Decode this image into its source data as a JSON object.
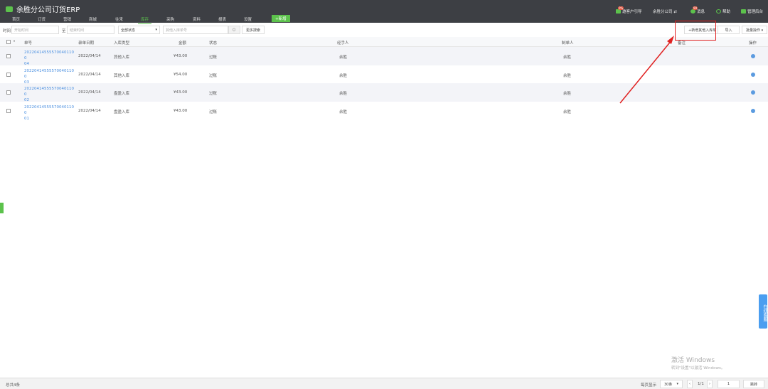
{
  "app": {
    "title": "余胜分公司订货ERP"
  },
  "nav": {
    "items": [
      "首页",
      "订货",
      "营销",
      "商城",
      "往来",
      "库存",
      "采购",
      "资料",
      "报表",
      "设置"
    ],
    "active": "库存",
    "add": "+新增"
  },
  "topright": {
    "guide": "邀客户引导",
    "guide_badge": "0%",
    "company": "余胜分公司 ⇄",
    "messages": "消息",
    "messages_badge": "99",
    "help": "帮助",
    "admin": "管理后台"
  },
  "filter": {
    "time_label": "时间",
    "start_placeholder": "开始时间",
    "to": "至",
    "end_placeholder": "结束时间",
    "status": "全部状态",
    "search_placeholder": "其他入库单号",
    "more": "更多搜索"
  },
  "actions": {
    "new": "+新增其他入库单",
    "import": "导入",
    "batch": "批量操作 ▾"
  },
  "table": {
    "headers": [
      "单号",
      "录单日期",
      "入库类型",
      "金额",
      "状态",
      "经手人",
      "制单人",
      "备注",
      "操作"
    ],
    "rows": [
      {
        "id": "2022041455557004011000 4",
        "id_a": "20220414555570040110 0",
        "id_b": "04",
        "date": "2022/04/14",
        "type": "其他入库",
        "amount": "¥43.00",
        "status": "过账",
        "handler": "余胜",
        "creator": "余胜",
        "note": ""
      },
      {
        "id_a": "20220414555570040110 0",
        "id_b": "03",
        "date": "2022/04/14",
        "type": "其他入库",
        "amount": "¥54.00",
        "status": "过账",
        "handler": "余胜",
        "creator": "余胜",
        "note": ""
      },
      {
        "id_a": "20220414555570040110 0",
        "id_b": "02",
        "date": "2022/04/14",
        "type": "盘盈入库",
        "amount": "¥43.00",
        "status": "过账",
        "handler": "余胜",
        "creator": "余胜",
        "note": ""
      },
      {
        "id_a": "20220414555570040110 0",
        "id_b": "01",
        "date": "2022/04/14",
        "type": "盘盈入库",
        "amount": "¥43.00",
        "status": "过账",
        "handler": "余胜",
        "creator": "余胜",
        "note": ""
      }
    ]
  },
  "footer": {
    "total": "总共4条",
    "per_page_label": "每页显示",
    "per_page": "30条",
    "page": "1/1",
    "page_input": "1",
    "jump": "跳转"
  },
  "watermark": {
    "line1": "激活 Windows",
    "line2": "转到\"设置\"以激活 Windows。"
  },
  "service": "在线客服",
  "colors": {
    "accent": "#5cc24c",
    "link": "#4a8fe0",
    "annotation": "#e02020"
  }
}
